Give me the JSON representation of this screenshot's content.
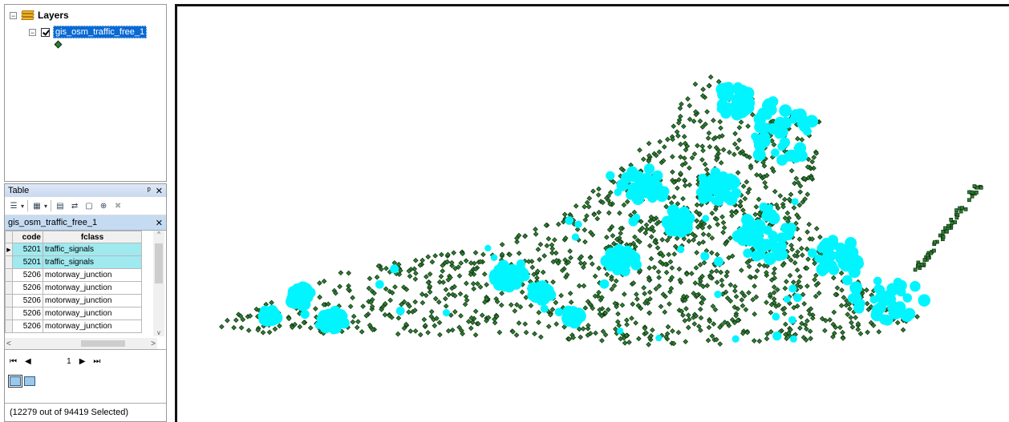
{
  "toc": {
    "root_label": "Layers",
    "layer_name": "gis_osm_traffic_free_1"
  },
  "table": {
    "title": "Table",
    "tab_name": "gis_osm_traffic_free_1",
    "columns": [
      "code",
      "fclass"
    ],
    "rows": [
      {
        "code": "5201",
        "fclass": "traffic_signals",
        "selected": true
      },
      {
        "code": "5201",
        "fclass": "traffic_signals",
        "selected": true
      },
      {
        "code": "5206",
        "fclass": "motorway_junction",
        "selected": false
      },
      {
        "code": "5206",
        "fclass": "motorway_junction",
        "selected": false
      },
      {
        "code": "5206",
        "fclass": "motorway_junction",
        "selected": false
      },
      {
        "code": "5206",
        "fclass": "motorway_junction",
        "selected": false
      },
      {
        "code": "5206",
        "fclass": "motorway_junction",
        "selected": false
      }
    ],
    "current_record": "1",
    "status": "(12279 out of 94419 Selected)"
  },
  "map": {
    "point_color": "#2e7d32",
    "point_outline": "#0b2e0d",
    "selected_color": "#00f5ff"
  },
  "icons": [
    "expander-icon",
    "layers-icon",
    "checkbox-icon",
    "pin-icon",
    "close-icon",
    "table-options-icon",
    "related-tables-icon",
    "select-by-attributes-icon",
    "switch-selection-icon",
    "clear-selection-icon",
    "zoom-to-selected-icon",
    "delete-selected-icon",
    "first-record-icon",
    "previous-record-icon",
    "next-record-icon",
    "last-record-icon"
  ]
}
